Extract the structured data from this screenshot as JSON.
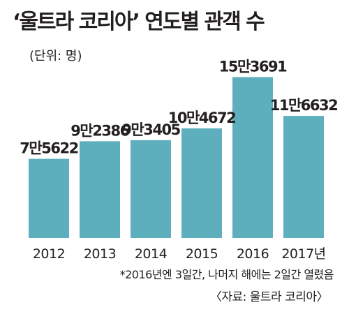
{
  "chart_data": {
    "type": "bar",
    "title": "‘울트라 코리아’ 연도별 관객 수",
    "unit_note": "(단위: 명)",
    "categories": [
      "2012",
      "2013",
      "2014",
      "2015",
      "2016",
      "2017년"
    ],
    "values": [
      75622,
      92386,
      93405,
      104672,
      153691,
      116632
    ],
    "value_labels": [
      "7만5622",
      "9만2386",
      "9만3405",
      "10만4672",
      "15만3691",
      "11만6632"
    ],
    "ylim": [
      0,
      160000
    ],
    "grid": false,
    "legend": "none",
    "bar_color": "#5eafbd",
    "footnote": "*2016년엔 3일간, 나머지 해에는 2일간 열렸음",
    "source": "〈자료: 울트라 코리아〉"
  }
}
